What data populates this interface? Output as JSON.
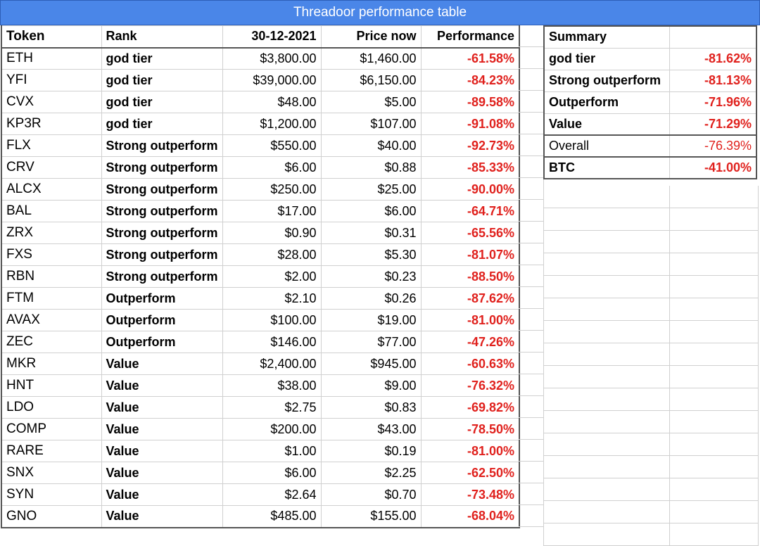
{
  "title": "Threadoor performance table",
  "colors": {
    "header_bg": "#4a86e8",
    "god_tier": "#2e6b1f",
    "strong_outperform": "#67b27b",
    "outperform": "#3c78d8",
    "value": "#d9836a",
    "negative": "#e0211d"
  },
  "main": {
    "headers": {
      "token": "Token",
      "rank": "Rank",
      "date_price": "30-12-2021",
      "price_now": "Price now",
      "performance": "Performance"
    },
    "rows": [
      {
        "token": "ETH",
        "rank": "god tier",
        "price_then": "$3,800.00",
        "price_now": "$1,460.00",
        "performance": "-61.58%"
      },
      {
        "token": "YFI",
        "rank": "god tier",
        "price_then": "$39,000.00",
        "price_now": "$6,150.00",
        "performance": "-84.23%"
      },
      {
        "token": "CVX",
        "rank": "god tier",
        "price_then": "$48.00",
        "price_now": "$5.00",
        "performance": "-89.58%"
      },
      {
        "token": "KP3R",
        "rank": "god tier",
        "price_then": "$1,200.00",
        "price_now": "$107.00",
        "performance": "-91.08%"
      },
      {
        "token": "FLX",
        "rank": "Strong outperform",
        "price_then": "$550.00",
        "price_now": "$40.00",
        "performance": "-92.73%"
      },
      {
        "token": "CRV",
        "rank": "Strong outperform",
        "price_then": "$6.00",
        "price_now": "$0.88",
        "performance": "-85.33%"
      },
      {
        "token": "ALCX",
        "rank": "Strong outperform",
        "price_then": "$250.00",
        "price_now": "$25.00",
        "performance": "-90.00%"
      },
      {
        "token": "BAL",
        "rank": "Strong outperform",
        "price_then": "$17.00",
        "price_now": "$6.00",
        "performance": "-64.71%"
      },
      {
        "token": "ZRX",
        "rank": "Strong outperform",
        "price_then": "$0.90",
        "price_now": "$0.31",
        "performance": "-65.56%"
      },
      {
        "token": "FXS",
        "rank": "Strong outperform",
        "price_then": "$28.00",
        "price_now": "$5.30",
        "performance": "-81.07%"
      },
      {
        "token": "RBN",
        "rank": "Strong outperform",
        "price_then": "$2.00",
        "price_now": "$0.23",
        "performance": "-88.50%"
      },
      {
        "token": "FTM",
        "rank": "Outperform",
        "price_then": "$2.10",
        "price_now": "$0.26",
        "performance": "-87.62%"
      },
      {
        "token": "AVAX",
        "rank": "Outperform",
        "price_then": "$100.00",
        "price_now": "$19.00",
        "performance": "-81.00%"
      },
      {
        "token": "ZEC",
        "rank": "Outperform",
        "price_then": "$146.00",
        "price_now": "$77.00",
        "performance": "-47.26%"
      },
      {
        "token": "MKR",
        "rank": "Value",
        "price_then": "$2,400.00",
        "price_now": "$945.00",
        "performance": "-60.63%"
      },
      {
        "token": "HNT",
        "rank": "Value",
        "price_then": "$38.00",
        "price_now": "$9.00",
        "performance": "-76.32%"
      },
      {
        "token": "LDO",
        "rank": "Value",
        "price_then": "$2.75",
        "price_now": "$0.83",
        "performance": "-69.82%"
      },
      {
        "token": "COMP",
        "rank": "Value",
        "price_then": "$200.00",
        "price_now": "$43.00",
        "performance": "-78.50%"
      },
      {
        "token": "RARE",
        "rank": "Value",
        "price_then": "$1.00",
        "price_now": "$0.19",
        "performance": "-81.00%"
      },
      {
        "token": "SNX",
        "rank": "Value",
        "price_then": "$6.00",
        "price_now": "$2.25",
        "performance": "-62.50%"
      },
      {
        "token": "SYN",
        "rank": "Value",
        "price_then": "$2.64",
        "price_now": "$0.70",
        "performance": "-73.48%"
      },
      {
        "token": "GNO",
        "rank": "Value",
        "price_then": "$485.00",
        "price_now": "$155.00",
        "performance": "-68.04%"
      }
    ]
  },
  "summary": {
    "header": "Summary",
    "rows": [
      {
        "label": "god tier",
        "value": "-81.62%"
      },
      {
        "label": "Strong outperform",
        "value": "-81.13%"
      },
      {
        "label": "Outperform",
        "value": "-71.96%"
      },
      {
        "label": "Value",
        "value": "-71.29%"
      },
      {
        "label": "Overall",
        "value": "-76.39%"
      },
      {
        "label": "BTC",
        "value": "-41.00%"
      }
    ]
  }
}
